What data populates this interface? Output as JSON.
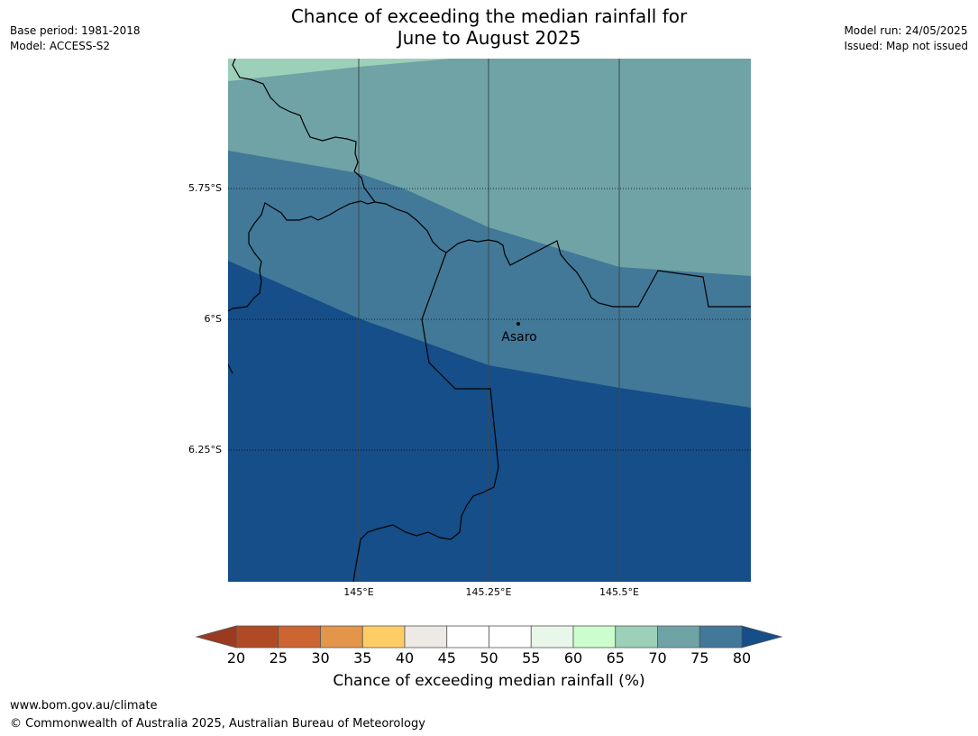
{
  "title_line1": "Chance of exceeding the median rainfall for",
  "title_line2": "June to August 2025",
  "meta_left": [
    "Base period: 1981-2018",
    "Model: ACCESS-S2"
  ],
  "meta_right": [
    "Model run: 24/05/2025",
    "Issued: Map not issued"
  ],
  "map": {
    "lat_labels": [
      "5.75°S",
      "6°S",
      "6.25°S"
    ],
    "lon_labels": [
      "145°E",
      "145.25°E",
      "145.5°E"
    ],
    "place": "Asaro",
    "zones_colors": {
      "65-70": "#9dd0b8",
      "70-75": "#6fa3a6",
      "75-80": "#427898",
      "80+": "#154e88"
    }
  },
  "colorbar": {
    "title": "Chance of exceeding median rainfall (%)",
    "ticks": [
      "20",
      "25",
      "30",
      "35",
      "40",
      "45",
      "50",
      "55",
      "60",
      "65",
      "70",
      "75",
      "80"
    ],
    "below_color": "#9a3a21",
    "above_color": "#154e88",
    "colors": [
      "#b04a25",
      "#cd6533",
      "#e39549",
      "#ffcd66",
      "#ede9e4",
      "#ffffff",
      "#ffffff",
      "#e9f7ea",
      "#cbfdcd",
      "#9dd0b8",
      "#6fa3a6",
      "#427898"
    ]
  },
  "footer": {
    "url": "www.bom.gov.au/climate",
    "copyright": "© Commonwealth of Australia 2025, Australian Bureau of Meteorology"
  }
}
